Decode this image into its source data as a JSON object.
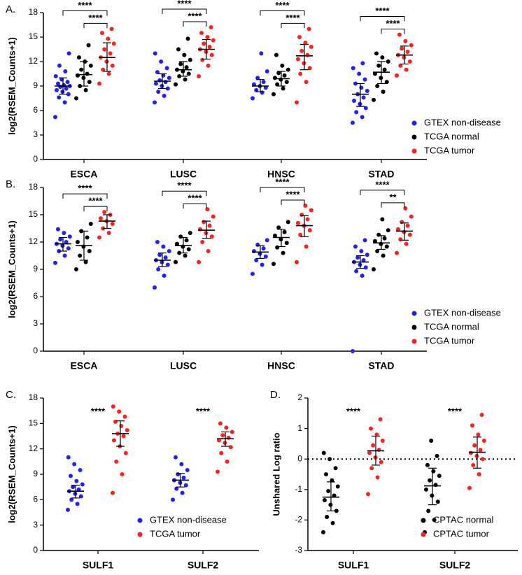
{
  "chart_data": [
    {
      "type": "dotplot",
      "panel": "A.",
      "y_label": "log2(RSEM_Counts+1)",
      "categories": [
        "ESCA",
        "LUSC",
        "HNSC",
        "STAD"
      ],
      "ylim": [
        0,
        18
      ],
      "yticks": [
        0,
        3,
        6,
        9,
        12,
        15,
        18
      ],
      "legend": "lower right",
      "series": [
        {
          "name": "GTEX non-disease",
          "color": "#1f1fff",
          "points": [
            [
              5.2,
              7.0,
              7.6,
              8.0,
              8.3,
              8.5,
              8.7,
              8.9,
              9.0,
              9.1,
              9.3,
              9.5,
              9.8,
              10.2,
              10.8,
              11.5,
              13.0
            ],
            [
              7.0,
              7.8,
              8.3,
              8.7,
              9.0,
              9.3,
              9.5,
              9.7,
              10.0,
              10.3,
              10.7,
              11.2,
              12.0,
              13.0
            ],
            [
              7.5,
              8.2,
              8.5,
              8.8,
              9.0,
              9.2,
              9.5,
              10.0,
              10.8,
              13.0
            ],
            [
              4.5,
              5.2,
              5.8,
              6.3,
              6.8,
              7.2,
              7.6,
              8.0,
              8.4,
              8.8,
              9.3,
              9.8,
              10.5,
              11.2,
              11.8
            ]
          ],
          "center": [
            9.0,
            9.6,
            9.0,
            8.0
          ],
          "low": [
            8.0,
            8.7,
            8.3,
            6.5
          ],
          "high": [
            10.0,
            10.5,
            9.8,
            9.3
          ]
        },
        {
          "name": "TCGA normal",
          "color": "#000000",
          "points": [
            [
              7.5,
              8.5,
              9.0,
              9.5,
              10.0,
              10.3,
              10.5,
              11.0,
              11.5,
              12.0,
              12.5,
              14.0
            ],
            [
              9.2,
              9.8,
              10.2,
              10.5,
              10.8,
              11.0,
              11.3,
              11.7,
              12.2,
              12.8,
              13.5,
              14.8
            ],
            [
              8.0,
              8.7,
              9.2,
              9.5,
              9.8,
              10.0,
              10.3,
              10.6,
              11.0,
              11.5,
              12.8
            ],
            [
              7.3,
              8.3,
              9.0,
              9.5,
              10.0,
              10.5,
              11.0,
              11.5,
              12.0,
              12.5,
              13.0
            ]
          ],
          "center": [
            10.4,
            11.0,
            9.9,
            10.7
          ],
          "low": [
            9.0,
            10.2,
            9.0,
            9.3
          ],
          "high": [
            12.0,
            12.0,
            10.8,
            12.0
          ]
        },
        {
          "name": "TCGA tumor",
          "color": "#ff1f1f",
          "points": [
            [
              9.3,
              10.5,
              11.0,
              11.5,
              12.0,
              12.5,
              13.0,
              13.5,
              14.2,
              14.8,
              15.5,
              16.0
            ],
            [
              10.2,
              11.5,
              12.2,
              12.8,
              13.2,
              13.5,
              13.8,
              14.2,
              14.6,
              15.0,
              15.5,
              16.2
            ],
            [
              7.0,
              9.5,
              10.5,
              11.2,
              11.8,
              12.3,
              12.8,
              13.3,
              13.8,
              14.3,
              15.0,
              16.0
            ],
            [
              10.3,
              11.0,
              11.5,
              12.0,
              12.5,
              12.8,
              13.2,
              13.6,
              14.0,
              14.5,
              15.3
            ]
          ],
          "center": [
            12.5,
            13.5,
            12.7,
            12.8
          ],
          "low": [
            10.8,
            12.3,
            11.0,
            11.7
          ],
          "high": [
            14.3,
            14.7,
            14.1,
            13.9
          ]
        }
      ],
      "annotations": [
        {
          "text": "****",
          "category": 0,
          "from": 0,
          "to": 2
        },
        {
          "text": "****",
          "category": 0,
          "from": 1,
          "to": 2
        },
        {
          "text": "****",
          "category": 1,
          "from": 0,
          "to": 2
        },
        {
          "text": "****",
          "category": 1,
          "from": 1,
          "to": 2
        },
        {
          "text": "****",
          "category": 2,
          "from": 0,
          "to": 2
        },
        {
          "text": "****",
          "category": 2,
          "from": 1,
          "to": 2
        },
        {
          "text": "****",
          "category": 3,
          "from": 0,
          "to": 2
        },
        {
          "text": "****",
          "category": 3,
          "from": 1,
          "to": 2
        }
      ]
    },
    {
      "type": "dotplot",
      "panel": "B.",
      "y_label": "log2(RSEM_Counts+1)",
      "categories": [
        "ESCA",
        "LUSC",
        "HNSC",
        "STAD"
      ],
      "ylim": [
        0,
        18
      ],
      "yticks": [
        0,
        3,
        6,
        9,
        12,
        15,
        18
      ],
      "legend": "lower right",
      "series": [
        {
          "name": "GTEX non-disease",
          "color": "#1f1fff",
          "points": [
            [
              9.7,
              10.5,
              11.0,
              11.3,
              11.6,
              11.8,
              12.0,
              12.3,
              12.6,
              13.0,
              13.4
            ],
            [
              7.0,
              8.3,
              9.0,
              9.5,
              9.8,
              10.0,
              10.3,
              10.6,
              11.0,
              11.5,
              12.0
            ],
            [
              8.5,
              9.5,
              10.0,
              10.4,
              10.7,
              11.0,
              11.3,
              11.7,
              12.2
            ],
            [
              0,
              8.3,
              8.8,
              9.2,
              9.5,
              9.8,
              10.0,
              10.3,
              10.6,
              11.0,
              11.5,
              12.2
            ]
          ],
          "center": [
            11.8,
            10.0,
            10.9,
            9.8
          ],
          "low": [
            11.0,
            9.3,
            10.2,
            9.1
          ],
          "high": [
            12.5,
            10.8,
            11.6,
            10.5
          ]
        },
        {
          "name": "TCGA normal",
          "color": "#000000",
          "points": [
            [
              9.0,
              9.8,
              10.5,
              11.0,
              11.5,
              12.0,
              12.5,
              13.2,
              14.0
            ],
            [
              9.8,
              10.5,
              10.8,
              11.2,
              11.5,
              11.8,
              12.2,
              12.6,
              13.0
            ],
            [
              9.6,
              10.8,
              11.4,
              11.9,
              12.3,
              12.7,
              13.1,
              13.6,
              14.2
            ],
            [
              9.0,
              10.5,
              11.0,
              11.5,
              11.8,
              12.1,
              12.4,
              12.8,
              13.3,
              14.5
            ]
          ],
          "center": [
            11.6,
            11.6,
            12.5,
            11.9
          ],
          "low": [
            10.0,
            10.8,
            11.5,
            11.2
          ],
          "high": [
            13.2,
            12.5,
            13.4,
            12.7
          ]
        },
        {
          "name": "TCGA tumor",
          "color": "#ff1f1f",
          "points": [
            [
              12.5,
              13.0,
              13.5,
              14.0,
              14.3,
              14.6,
              15.0,
              15.3
            ],
            [
              9.8,
              11.0,
              12.0,
              12.6,
              13.0,
              13.4,
              13.8,
              14.2,
              14.8,
              15.6
            ],
            [
              9.8,
              11.5,
              12.8,
              13.3,
              13.8,
              14.1,
              14.5,
              15.0,
              15.5,
              16.0
            ],
            [
              10.8,
              11.8,
              12.3,
              12.8,
              13.1,
              13.4,
              13.8,
              14.2,
              14.8,
              15.7
            ]
          ],
          "center": [
            14.3,
            13.3,
            13.8,
            13.2
          ],
          "low": [
            13.5,
            12.4,
            12.6,
            12.2
          ],
          "high": [
            15.0,
            14.3,
            14.9,
            14.1
          ]
        }
      ],
      "annotations": [
        {
          "text": "****",
          "category": 0,
          "from": 0,
          "to": 2
        },
        {
          "text": "****",
          "category": 0,
          "from": 1,
          "to": 2
        },
        {
          "text": "****",
          "category": 1,
          "from": 0,
          "to": 2
        },
        {
          "text": "****",
          "category": 1,
          "from": 1,
          "to": 2
        },
        {
          "text": "****",
          "category": 2,
          "from": 0,
          "to": 2
        },
        {
          "text": "****",
          "category": 2,
          "from": 1,
          "to": 2
        },
        {
          "text": "****",
          "category": 3,
          "from": 0,
          "to": 2
        },
        {
          "text": "**",
          "category": 3,
          "from": 1,
          "to": 2
        }
      ]
    },
    {
      "type": "dotplot",
      "panel": "C.",
      "y_label": "log2(RSEM_Counts+1)",
      "categories": [
        "SULF1",
        "SULF2"
      ],
      "ylim": [
        0,
        18
      ],
      "yticks": [
        0,
        3,
        6,
        9,
        12,
        15,
        18
      ],
      "legend": "lower right",
      "series": [
        {
          "name": "GTEX non-disease",
          "color": "#1f1fff",
          "points": [
            [
              4.8,
              5.5,
              6.0,
              6.4,
              6.7,
              7.0,
              7.2,
              7.5,
              7.8,
              8.2,
              8.8,
              9.5,
              10.2,
              11.0
            ],
            [
              6.0,
              6.8,
              7.3,
              7.7,
              8.0,
              8.3,
              8.6,
              9.0,
              9.5,
              10.2,
              11.0
            ]
          ],
          "center": [
            7.0,
            8.3
          ],
          "low": [
            6.2,
            7.5
          ],
          "high": [
            7.7,
            9.1
          ]
        },
        {
          "name": "TCGA tumor",
          "color": "#ff1f1f",
          "points": [
            [
              6.8,
              9.0,
              10.5,
              11.5,
              12.3,
              13.0,
              13.5,
              13.8,
              14.2,
              14.7,
              15.2,
              15.8,
              16.4,
              17.0
            ],
            [
              9.3,
              10.5,
              11.5,
              12.2,
              12.7,
              13.0,
              13.3,
              13.6,
              14.0,
              14.5,
              15.0
            ]
          ],
          "center": [
            13.8,
            13.2
          ],
          "low": [
            12.3,
            12.3
          ],
          "high": [
            15.3,
            14.0
          ]
        }
      ],
      "annotations": [
        {
          "text": "****",
          "category": 0
        },
        {
          "text": "****",
          "category": 1
        }
      ]
    },
    {
      "type": "dotplot",
      "panel": "D.",
      "y_label": "Unshared Log ratio",
      "categories": [
        "SULF1",
        "SULF2"
      ],
      "ylim": [
        -3,
        2
      ],
      "yticks": [
        -3,
        -2,
        -1,
        0,
        1,
        2
      ],
      "legend": "lower right",
      "reference_line": 0,
      "series": [
        {
          "name": "CPTAC normal",
          "color": "#000000",
          "points": [
            [
              -2.4,
              -2.1,
              -1.9,
              -1.7,
              -1.5,
              -1.35,
              -1.2,
              -1.05,
              -0.9,
              -0.7,
              -0.5,
              -0.3,
              0.0,
              0.2
            ],
            [
              -2.4,
              -2.0,
              -1.7,
              -1.4,
              -1.2,
              -1.0,
              -0.85,
              -0.7,
              -0.55,
              -0.4,
              -0.2,
              0.1,
              0.6
            ]
          ],
          "center": [
            -1.25,
            -0.88
          ],
          "low": [
            -1.7,
            -1.5
          ],
          "high": [
            -0.75,
            -0.3
          ]
        },
        {
          "name": "CPTAC tumor",
          "color": "#ff1f1f",
          "points": [
            [
              -1.15,
              -0.6,
              -0.3,
              -0.1,
              0.05,
              0.2,
              0.3,
              0.45,
              0.6,
              0.8,
              1.0,
              1.3
            ],
            [
              -0.95,
              -0.5,
              -0.2,
              0.0,
              0.1,
              0.2,
              0.3,
              0.45,
              0.6,
              0.8,
              1.1,
              1.45
            ]
          ],
          "center": [
            0.27,
            0.22
          ],
          "low": [
            -0.2,
            -0.3
          ],
          "high": [
            0.75,
            0.72
          ]
        }
      ],
      "annotations": [
        {
          "text": "****",
          "category": 0
        },
        {
          "text": "****",
          "category": 1
        }
      ]
    }
  ]
}
